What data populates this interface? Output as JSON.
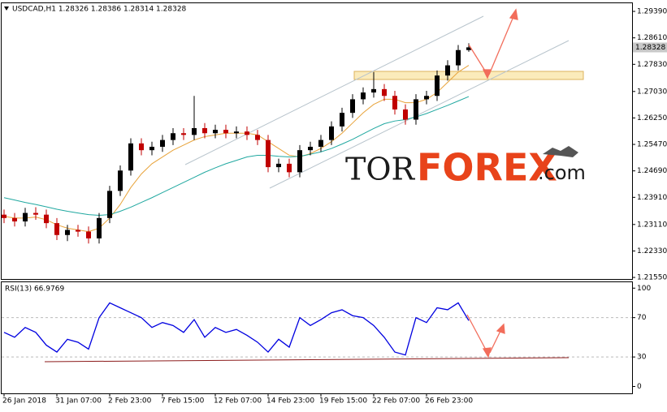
{
  "chart_data": {
    "type": "candlestick",
    "title": "USDCAD,H1  1.28326 1.28386 1.28314 1.28328",
    "categories": [
      "26 Jan 2018",
      null,
      null,
      null,
      null,
      "31 Jan 07:00",
      null,
      null,
      null,
      null,
      "2 Feb 23:00",
      null,
      null,
      null,
      null,
      "7 Feb 15:00",
      null,
      null,
      null,
      null,
      "12 Feb 07:00",
      null,
      null,
      null,
      null,
      "14 Feb 23:00",
      null,
      null,
      null,
      null,
      "19 Feb 15:00",
      null,
      null,
      null,
      null,
      "22 Feb 07:00",
      null,
      null,
      null,
      null,
      "26 Feb 23:00",
      null,
      null,
      null,
      null
    ],
    "open": [
      1.234,
      1.233,
      1.232,
      1.2345,
      1.234,
      1.2315,
      1.228,
      1.2295,
      1.229,
      1.227,
      1.233,
      1.241,
      1.247,
      1.255,
      1.253,
      1.254,
      1.256,
      1.258,
      1.2575,
      1.2595,
      1.258,
      1.259,
      1.258,
      1.2585,
      1.2575,
      1.256,
      1.248,
      1.249,
      1.2465,
      1.253,
      1.254,
      1.256,
      1.26,
      1.264,
      1.268,
      1.27,
      1.271,
      1.269,
      1.265,
      1.262,
      1.268,
      1.269,
      1.275,
      1.278,
      1.2825
    ],
    "high": [
      1.2355,
      1.2345,
      1.236,
      1.2362,
      1.2355,
      1.233,
      1.231,
      1.231,
      1.2305,
      1.2345,
      1.2425,
      1.2485,
      1.2565,
      1.2565,
      1.2555,
      1.2575,
      1.2595,
      1.2595,
      1.269,
      1.261,
      1.2605,
      1.2605,
      1.26,
      1.26,
      1.259,
      1.2575,
      1.2505,
      1.2505,
      1.2545,
      1.2555,
      1.2575,
      1.2615,
      1.2655,
      1.2695,
      1.2715,
      1.276,
      1.2725,
      1.2705,
      1.2665,
      1.2695,
      1.2705,
      1.2765,
      1.2795,
      1.284,
      1.2845
    ],
    "low": [
      1.2315,
      1.2305,
      1.2305,
      1.2325,
      1.23,
      1.2265,
      1.2262,
      1.2275,
      1.2255,
      1.2255,
      1.2315,
      1.2395,
      1.2455,
      1.2515,
      1.2515,
      1.2525,
      1.2545,
      1.256,
      1.256,
      1.2565,
      1.2565,
      1.2565,
      1.2565,
      1.256,
      1.2545,
      1.2465,
      1.2465,
      1.245,
      1.245,
      1.2515,
      1.2525,
      1.2545,
      1.2585,
      1.2625,
      1.2665,
      1.2685,
      1.2675,
      1.2635,
      1.2605,
      1.2605,
      1.2665,
      1.2675,
      1.2735,
      1.2765,
      1.282
    ],
    "close": [
      1.233,
      1.232,
      1.2345,
      1.234,
      1.2315,
      1.228,
      1.2295,
      1.229,
      1.227,
      1.233,
      1.241,
      1.247,
      1.255,
      1.253,
      1.254,
      1.256,
      1.258,
      1.2575,
      1.2595,
      1.258,
      1.259,
      1.258,
      1.2585,
      1.2575,
      1.256,
      1.248,
      1.249,
      1.2465,
      1.253,
      1.254,
      1.256,
      1.26,
      1.264,
      1.268,
      1.27,
      1.271,
      1.269,
      1.265,
      1.262,
      1.268,
      1.269,
      1.275,
      1.278,
      1.2825,
      1.2833
    ],
    "up_color": "#000000",
    "down_color": "#c00000",
    "lines": [
      {
        "color": "#e8a33a",
        "values": [
          1.2335,
          1.233,
          1.233,
          1.2333,
          1.2325,
          1.231,
          1.23,
          1.2295,
          1.229,
          1.23,
          1.233,
          1.237,
          1.242,
          1.246,
          1.249,
          1.251,
          1.253,
          1.2545,
          1.256,
          1.257,
          1.2575,
          1.258,
          1.258,
          1.258,
          1.2575,
          1.2555,
          1.2535,
          1.2515,
          1.251,
          1.252,
          1.2535,
          1.2555,
          1.258,
          1.261,
          1.264,
          1.2665,
          1.268,
          1.268,
          1.267,
          1.267,
          1.268,
          1.27,
          1.273,
          1.276,
          1.278
        ]
      },
      {
        "color": "#20a8a0",
        "values": [
          1.239,
          1.2383,
          1.2376,
          1.237,
          1.2363,
          1.2356,
          1.235,
          1.2345,
          1.234,
          1.2338,
          1.234,
          1.235,
          1.2362,
          1.2376,
          1.239,
          1.2405,
          1.242,
          1.2435,
          1.245,
          1.2465,
          1.2478,
          1.249,
          1.25,
          1.251,
          1.2515,
          1.2515,
          1.2512,
          1.251,
          1.2512,
          1.2518,
          1.2525,
          1.2535,
          1.2548,
          1.2562,
          1.2578,
          1.2594,
          1.2608,
          1.2616,
          1.262,
          1.2628,
          1.2638,
          1.265,
          1.2662,
          1.2675,
          1.2688
        ]
      }
    ],
    "ylim": [
      1.2148,
      1.2963
    ],
    "yticks": [
      {
        "value": 1.2939,
        "label": "1.29390"
      },
      {
        "value": 1.2861,
        "label": "1.28610"
      },
      {
        "value": 1.2783,
        "label": "1.27830"
      },
      {
        "value": 1.2703,
        "label": "1.27030"
      },
      {
        "value": 1.2625,
        "label": "1.26250"
      },
      {
        "value": 1.2547,
        "label": "1.25470"
      },
      {
        "value": 1.2469,
        "label": "1.24690"
      },
      {
        "value": 1.2391,
        "label": "1.23910"
      },
      {
        "value": 1.2311,
        "label": "1.23110"
      },
      {
        "value": 1.2233,
        "label": "1.22330"
      },
      {
        "value": 1.2155,
        "label": "1.21550"
      }
    ],
    "last_price": 1.28328,
    "watermark": [
      "TOR",
      "FOREX",
      ".com"
    ],
    "rsi": {
      "label": "RSI(13) 66.9769",
      "color": "#0000e0",
      "values": [
        55,
        50,
        60,
        55,
        42,
        35,
        48,
        45,
        38,
        70,
        85,
        80,
        75,
        70,
        60,
        65,
        62,
        55,
        68,
        50,
        60,
        55,
        58,
        52,
        45,
        35,
        48,
        40,
        70,
        62,
        68,
        75,
        78,
        72,
        70,
        62,
        50,
        35,
        32,
        70,
        65,
        80,
        78,
        85,
        67
      ],
      "ylim": [
        -7,
        106
      ],
      "yticks": [
        100,
        70,
        30,
        0
      ],
      "dashed_levels": [
        70,
        30
      ]
    }
  }
}
